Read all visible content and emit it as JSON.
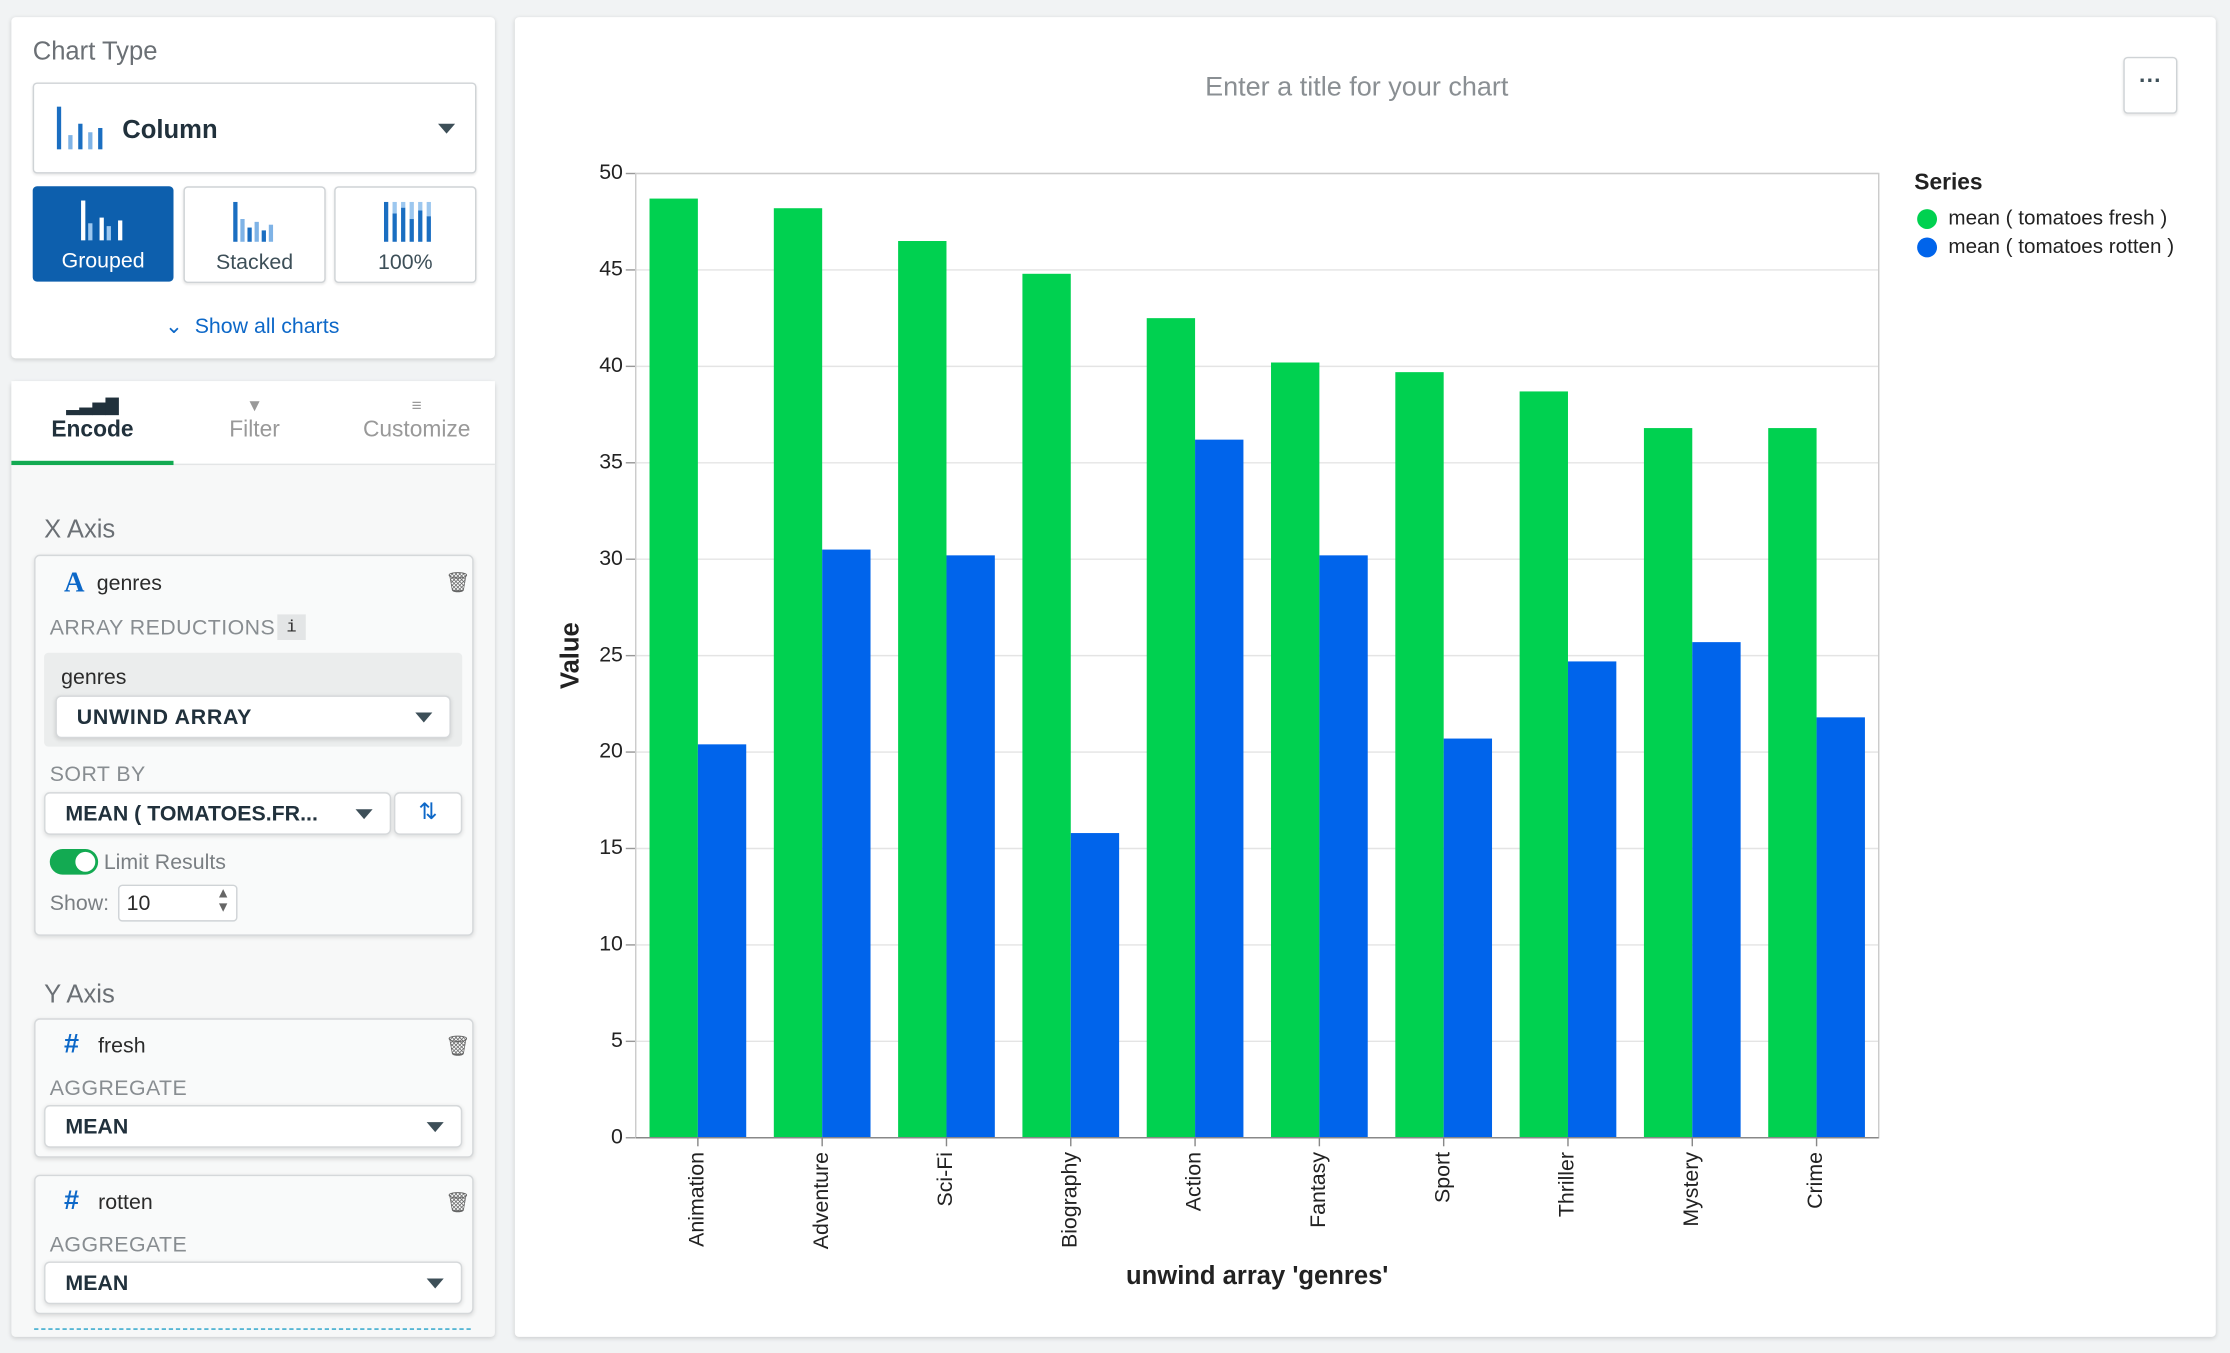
{
  "sidebar": {
    "chart_type": {
      "heading": "Chart Type",
      "selected": "Column",
      "variants": [
        "Grouped",
        "Stacked",
        "100%"
      ],
      "show_all": "Show all charts"
    },
    "tabs": [
      "Encode",
      "Filter",
      "Customize"
    ],
    "x_axis": {
      "heading": "X Axis",
      "field": "genres",
      "array_reductions": "ARRAY REDUCTIONS",
      "info": "i",
      "reduction_field": "genres",
      "reduction": "UNWIND ARRAY",
      "sort_by_label": "SORT BY",
      "sort_by": "MEAN ( TOMATOES.FR...",
      "limit_label": "Limit Results",
      "show_label": "Show:",
      "show_value": 10
    },
    "y_axis": {
      "heading": "Y Axis",
      "fields": [
        {
          "name": "fresh",
          "aggregate_label": "AGGREGATE",
          "aggregate": "MEAN"
        },
        {
          "name": "rotten",
          "aggregate_label": "AGGREGATE",
          "aggregate": "MEAN"
        }
      ]
    }
  },
  "chart_data": {
    "type": "bar",
    "title": "Enter a title for your chart",
    "x_label": "unwind array 'genres'",
    "y_label": "Value",
    "categories": [
      "Animation",
      "Adventure",
      "Sci-Fi",
      "Biography",
      "Action",
      "Fantasy",
      "Sport",
      "Thriller",
      "Mystery",
      "Crime"
    ],
    "series": [
      {
        "name": "mean ( tomatoes fresh )",
        "color": "#00d150",
        "values": [
          48.7,
          48.2,
          46.5,
          44.8,
          42.5,
          40.2,
          39.7,
          38.7,
          36.8,
          36.8
        ]
      },
      {
        "name": "mean ( tomatoes rotten )",
        "color": "#0064eb",
        "values": [
          20.4,
          30.5,
          30.2,
          15.8,
          36.2,
          30.2,
          20.7,
          24.7,
          25.7,
          21.8
        ]
      }
    ],
    "ylim": [
      0,
      50
    ],
    "yticks": [
      0,
      5,
      10,
      15,
      20,
      25,
      30,
      35,
      40,
      45,
      50
    ],
    "grid": true,
    "legend_title": "Series",
    "legend": "right"
  }
}
